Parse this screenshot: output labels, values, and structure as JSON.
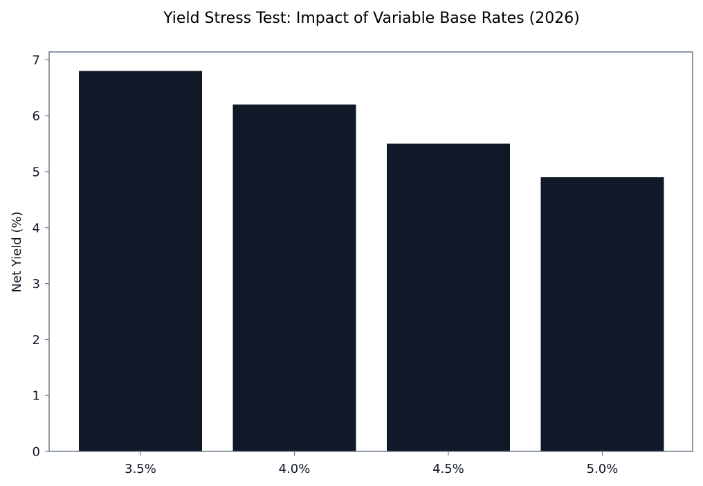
{
  "chart_data": {
    "type": "bar",
    "title": "Yield Stress Test: Impact of Variable Base Rates (2026)",
    "xlabel": "",
    "ylabel": "Net Yield (%)",
    "categories": [
      "3.5%",
      "4.0%",
      "4.5%",
      "5.0%"
    ],
    "values": [
      6.8,
      6.2,
      5.5,
      4.9
    ],
    "ylim": [
      0,
      7.14
    ],
    "yticks": [
      0,
      1,
      2,
      3,
      4,
      5,
      6,
      7
    ],
    "grid": false,
    "legend": "none",
    "colors": {
      "bar": "#111827",
      "frame": "#6b7a8c",
      "text": "#111827",
      "title": "#000000",
      "background": "#ffffff"
    }
  }
}
